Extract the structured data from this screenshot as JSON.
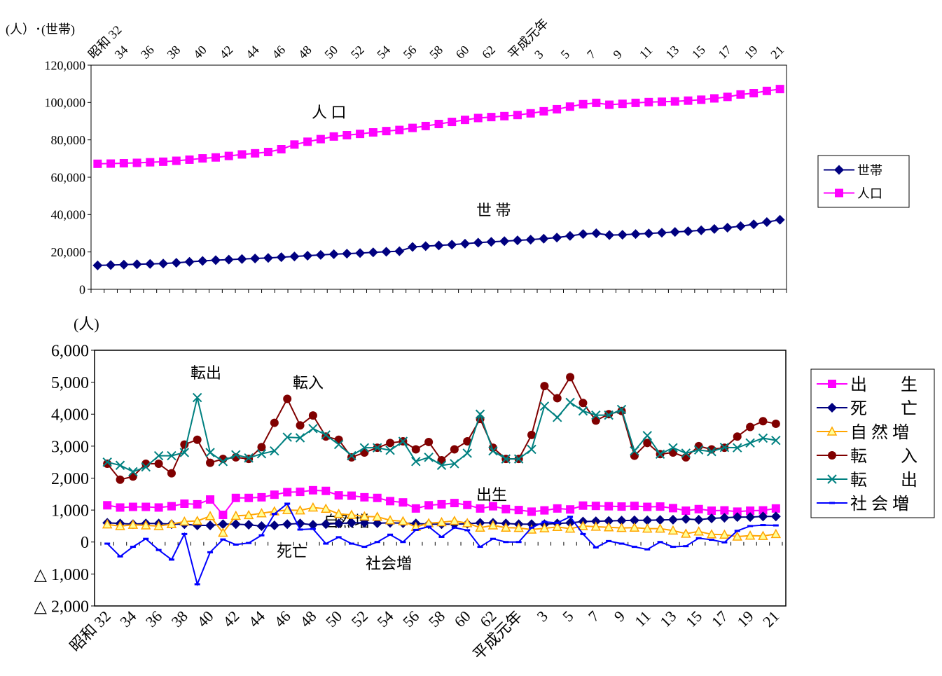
{
  "chart_data": [
    {
      "type": "line",
      "y_label": "(人）･(世帯)",
      "x_axis_side": "top",
      "legend": "right",
      "categories": [
        "昭和 32",
        null,
        "34",
        null,
        "36",
        null,
        "38",
        null,
        "40",
        null,
        "42",
        null,
        "44",
        null,
        "46",
        null,
        "48",
        null,
        "50",
        null,
        "52",
        null,
        "54",
        null,
        "56",
        null,
        "58",
        null,
        "60",
        null,
        "62",
        null,
        "平成元年",
        null,
        "3",
        null,
        "5",
        null,
        "7",
        null,
        "9",
        null,
        "11",
        null,
        "13",
        null,
        "15",
        null,
        "17",
        null,
        "19",
        null,
        "21"
      ],
      "ylim": [
        0,
        120000
      ],
      "yticks": [
        0,
        {
          "value": 20000,
          "label": "20,000"
        },
        {
          "value": 40000,
          "label": "40,000"
        },
        {
          "value": 60000,
          "label": "60,000"
        },
        {
          "value": 80000,
          "label": "80,000"
        },
        {
          "value": 100000,
          "label": "100,000"
        },
        {
          "value": 120000,
          "label": "120,000"
        }
      ],
      "series": [
        {
          "name": "世帯",
          "color": "#000080",
          "marker": "diamond",
          "values": [
            12800,
            13000,
            13200,
            13400,
            13600,
            13800,
            14200,
            14700,
            15200,
            15600,
            15900,
            16200,
            16500,
            16800,
            17200,
            17600,
            18000,
            18400,
            18800,
            19100,
            19400,
            19800,
            20100,
            20400,
            22700,
            23100,
            23500,
            23900,
            24400,
            25000,
            25400,
            25800,
            26200,
            26600,
            27100,
            27700,
            28600,
            29600,
            30000,
            29000,
            29200,
            29600,
            29900,
            30300,
            30700,
            31100,
            31600,
            32300,
            33000,
            33800,
            34800,
            36000,
            37200
          ]
        },
        {
          "name": "人口",
          "color": "#ff00ff",
          "marker": "square",
          "values": [
            67200,
            67300,
            67500,
            67700,
            68000,
            68300,
            68800,
            69400,
            70100,
            70600,
            71400,
            72200,
            72800,
            73500,
            75000,
            77500,
            79000,
            80400,
            81800,
            82500,
            83200,
            84000,
            84700,
            85300,
            86400,
            87400,
            88500,
            89600,
            90700,
            91700,
            92200,
            92700,
            93300,
            94200,
            95300,
            96400,
            97800,
            99100,
            99800,
            98800,
            99300,
            99800,
            100200,
            100400,
            100600,
            101000,
            101500,
            102200,
            103000,
            104300,
            105000,
            106200,
            107200
          ]
        }
      ],
      "annotations": [
        "人 口",
        "世 帯"
      ]
    },
    {
      "type": "line",
      "y_label": "(人)",
      "x_axis_side": "bottom",
      "legend": "right",
      "categories": [
        "昭和 32",
        null,
        "34",
        null,
        "36",
        null,
        "38",
        null,
        "40",
        null,
        "42",
        null,
        "44",
        null,
        "46",
        null,
        "48",
        null,
        "50",
        null,
        "52",
        null,
        "54",
        null,
        "56",
        null,
        "58",
        null,
        "60",
        null,
        "62",
        null,
        "平成元年",
        null,
        "3",
        null,
        "5",
        null,
        "7",
        null,
        "9",
        null,
        "11",
        null,
        "13",
        null,
        "15",
        null,
        "17",
        null,
        "19",
        null,
        "21"
      ],
      "ylim": [
        -2000,
        6000
      ],
      "yticks": [
        {
          "value": -2000,
          "label": "△ 2,000"
        },
        {
          "value": -1000,
          "label": "△ 1,000"
        },
        0,
        {
          "value": 1000,
          "label": "1,000"
        },
        {
          "value": 2000,
          "label": "2,000"
        },
        {
          "value": 3000,
          "label": "3,000"
        },
        {
          "value": 4000,
          "label": "4,000"
        },
        {
          "value": 5000,
          "label": "5,000"
        },
        {
          "value": 6000,
          "label": "6,000"
        }
      ],
      "series": [
        {
          "name": "出　　生",
          "color": "#ff00ff",
          "marker": "square",
          "values": [
            1150,
            1080,
            1100,
            1100,
            1080,
            1120,
            1200,
            1180,
            1330,
            850,
            1380,
            1380,
            1400,
            1480,
            1560,
            1570,
            1620,
            1600,
            1460,
            1450,
            1400,
            1380,
            1280,
            1240,
            1050,
            1150,
            1180,
            1220,
            1160,
            1050,
            1120,
            1030,
            1000,
            950,
            990,
            1050,
            1020,
            1140,
            1130,
            1120,
            1110,
            1130,
            1100,
            1110,
            1060,
            980,
            1030,
            980,
            990,
            950,
            980,
            990,
            1050
          ]
        },
        {
          "name": "死　　亡",
          "color": "#000080",
          "marker": "diamond",
          "values": [
            600,
            580,
            560,
            580,
            580,
            560,
            560,
            520,
            520,
            560,
            560,
            540,
            500,
            520,
            560,
            580,
            540,
            560,
            580,
            600,
            600,
            590,
            600,
            590,
            580,
            560,
            560,
            560,
            570,
            600,
            600,
            580,
            560,
            560,
            560,
            580,
            600,
            640,
            650,
            660,
            670,
            680,
            680,
            690,
            700,
            720,
            700,
            740,
            760,
            780,
            780,
            800,
            800
          ]
        },
        {
          "name": "自 然 増",
          "color": "#ffa500",
          "marker": "triangle",
          "values": [
            550,
            500,
            540,
            520,
            500,
            560,
            640,
            660,
            810,
            290,
            820,
            840,
            900,
            960,
            1000,
            990,
            1080,
            1040,
            880,
            850,
            800,
            790,
            680,
            650,
            470,
            590,
            620,
            660,
            590,
            450,
            520,
            450,
            440,
            390,
            430,
            470,
            420,
            500,
            480,
            460,
            440,
            450,
            420,
            420,
            360,
            260,
            330,
            240,
            230,
            170,
            200,
            190,
            250
          ]
        },
        {
          "name": "転　　入",
          "color": "#800000",
          "marker": "circle",
          "values": [
            2450,
            1950,
            2050,
            2450,
            2450,
            2150,
            3050,
            3200,
            2480,
            2600,
            2650,
            2600,
            2970,
            3730,
            4480,
            3650,
            3960,
            3300,
            3200,
            2650,
            2800,
            2950,
            3100,
            3150,
            2900,
            3130,
            2560,
            2900,
            3150,
            3850,
            2950,
            2600,
            2600,
            3350,
            4880,
            4500,
            5160,
            4350,
            3800,
            4000,
            4100,
            2700,
            3100,
            2750,
            2800,
            2650,
            3000,
            2900,
            2950,
            3300,
            3600,
            3780,
            3700
          ]
        },
        {
          "name": "転　　出",
          "color": "#008080",
          "marker": "cross",
          "values": [
            2500,
            2400,
            2200,
            2350,
            2700,
            2700,
            2800,
            4520,
            2800,
            2520,
            2730,
            2630,
            2760,
            2850,
            3280,
            3260,
            3550,
            3350,
            3050,
            2700,
            2950,
            2950,
            2870,
            3150,
            2520,
            2650,
            2400,
            2450,
            2780,
            4000,
            2850,
            2600,
            2600,
            2900,
            4250,
            3900,
            4370,
            4100,
            3970,
            3970,
            4150,
            2850,
            3330,
            2750,
            2950,
            2780,
            2880,
            2830,
            2960,
            2950,
            3100,
            3250,
            3180
          ]
        },
        {
          "name": "社 会 増",
          "color": "#0000ff",
          "marker": "dash",
          "values": [
            -50,
            -450,
            -150,
            100,
            -250,
            -550,
            250,
            -1320,
            -320,
            80,
            -80,
            -30,
            210,
            880,
            1200,
            390,
            410,
            -50,
            150,
            -50,
            -150,
            0,
            230,
            0,
            380,
            480,
            160,
            450,
            370,
            -150,
            100,
            0,
            0,
            450,
            630,
            600,
            790,
            250,
            -170,
            30,
            -50,
            -150,
            -230,
            0,
            -150,
            -130,
            120,
            70,
            -10,
            350,
            500,
            530,
            520
          ]
        }
      ],
      "annotations": [
        "転出",
        "転入",
        "自然増",
        "出生",
        "死亡",
        "社会増"
      ]
    }
  ]
}
